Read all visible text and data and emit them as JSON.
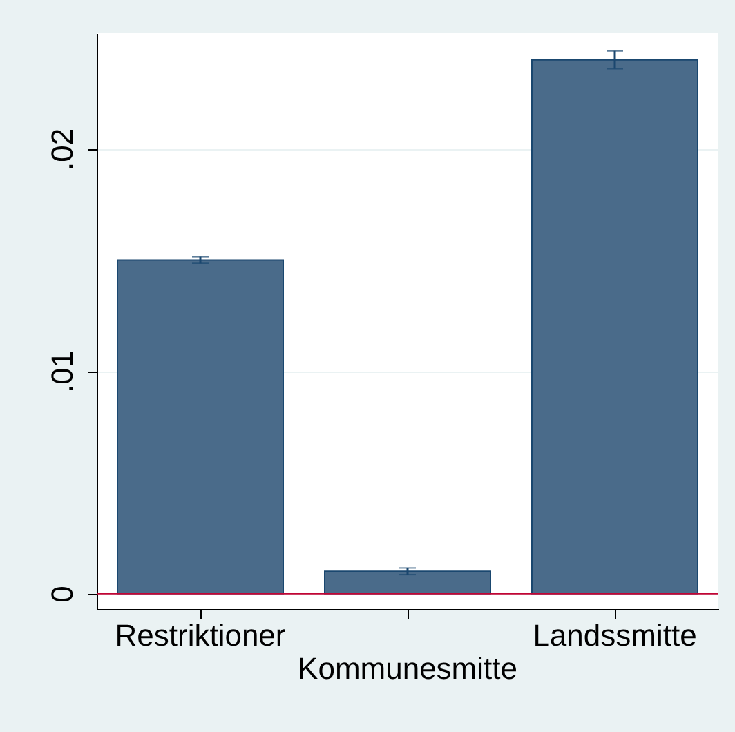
{
  "chart_data": {
    "type": "bar",
    "categories": [
      "Restriktioner",
      "Kommunesmitte",
      "Landssmitte"
    ],
    "values": [
      0.015,
      0.001,
      0.024
    ],
    "errors": [
      0.00015,
      0.00015,
      0.0004
    ],
    "color": "#4a6b8a",
    "ylim": [
      -0.0007,
      0.0252
    ],
    "yticks": [
      {
        "value": 0,
        "label": "0"
      },
      {
        "value": 0.01,
        "label": ".01"
      },
      {
        "value": 0.02,
        "label": ".02"
      }
    ],
    "grid": "y",
    "ref_lines": [
      {
        "axis": "y",
        "value": 0,
        "color": "#c10534"
      }
    ]
  }
}
